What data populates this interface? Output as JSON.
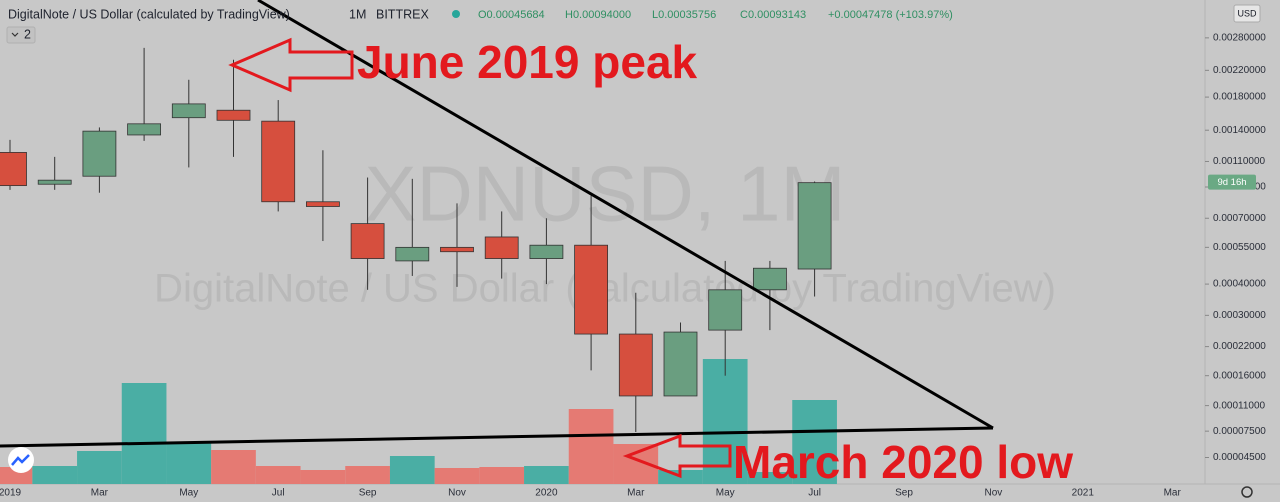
{
  "chart_data": {
    "type": "candlestick",
    "title": "DigitalNote / US Dollar (calculated by TradingView)",
    "interval": "1M",
    "exchange": "BITTREX",
    "legend_values": [
      "O0.00045684",
      "H0.00094000",
      "L0.00035756",
      "C0.00093143",
      "+0.00047478 (+103.97%)"
    ],
    "indicator_count": 2,
    "currency": "USD",
    "countdown": "9d 16h",
    "watermark": [
      "XDNUSD, 1M",
      "DigitalNote / US Dollar (calculated by TradingView)"
    ],
    "annotations": [
      "June 2019 peak",
      "March 2020 low"
    ],
    "log_scale": true,
    "ylim": [
      2e-05,
      0.0037
    ],
    "yticks": [
      {
        "value": 0.0028,
        "label": "0.00280000"
      },
      {
        "value": 0.0022,
        "label": "0.00220000"
      },
      {
        "value": 0.0018,
        "label": "0.00180000"
      },
      {
        "value": 0.0014,
        "label": "0.00140000"
      },
      {
        "value": 0.0011,
        "label": "0.00110000"
      },
      {
        "value": 0.0009,
        "label": "0.00090000"
      },
      {
        "value": 0.0007,
        "label": "0.00070000"
      },
      {
        "value": 0.00055,
        "label": "0.00055000"
      },
      {
        "value": 0.0004,
        "label": "0.00040000"
      },
      {
        "value": 0.0003,
        "label": "0.00030000"
      },
      {
        "value": 0.00022,
        "label": "0.00022000"
      },
      {
        "value": 0.00016,
        "label": "0.00016000"
      },
      {
        "value": 0.00011,
        "label": "0.00011000"
      },
      {
        "value": 7.5e-05,
        "label": "0.00007500"
      },
      {
        "value": 4.5e-05,
        "label": "0.00004500"
      }
    ],
    "categories": [
      "2019",
      null,
      "Mar",
      null,
      "May",
      null,
      "Jul",
      null,
      "Sep",
      null,
      "Nov",
      null,
      "2020",
      null,
      "Mar",
      null,
      "May",
      null,
      "Jul",
      null,
      "Sep",
      null,
      "Nov",
      null,
      "2021",
      null,
      "Mar"
    ],
    "open": [
      0.00118,
      0.00092,
      0.00098,
      0.00135,
      0.00154,
      0.00163,
      0.0015,
      0.0008,
      0.00067,
      0.00049,
      0.00055,
      0.0006,
      0.0005,
      0.00056,
      0.00025,
      0.000125,
      0.00026,
      0.00038,
      0.00045684,
      null,
      null,
      null,
      null,
      null,
      null,
      null,
      null
    ],
    "high": [
      0.0013,
      0.00114,
      0.00143,
      0.0026,
      0.00205,
      0.00238,
      0.00176,
      0.0012,
      0.00097,
      0.00096,
      0.00079,
      0.00074,
      0.0007,
      0.00084,
      0.00037,
      0.00028,
      0.00049,
      0.00049,
      0.00094,
      null,
      null,
      null,
      null,
      null,
      null,
      null,
      null
    ],
    "low": [
      0.00088,
      0.00088,
      0.00086,
      0.00129,
      0.00105,
      0.00114,
      0.00074,
      0.00058,
      0.00038,
      0.00043,
      0.00039,
      0.00042,
      0.0004,
      0.00017,
      7.4e-05,
      0.000125,
      0.00016,
      0.00026,
      0.00035756,
      null,
      null,
      null,
      null,
      null,
      null,
      null,
      null
    ],
    "close": [
      0.00091,
      0.00095,
      0.00139,
      0.00147,
      0.00171,
      0.00151,
      0.0008,
      0.00077,
      0.0005,
      0.00055,
      0.00053,
      0.0005,
      0.00056,
      0.00025,
      0.000125,
      0.000255,
      0.00038,
      0.00046,
      0.00093143,
      null,
      null,
      null,
      null,
      null,
      null,
      null,
      null
    ],
    "volume": [
      17,
      18,
      33,
      101,
      42,
      34,
      18,
      14,
      18,
      28,
      16,
      17,
      18,
      75,
      40,
      14,
      125,
      12,
      84,
      null,
      null,
      null,
      null,
      null,
      null,
      null,
      null
    ],
    "up_color": "#6a9e80",
    "down_color": "#d64f3e",
    "volume_up_color": "#4aaea4",
    "volume_down_color": "#e57a73"
  }
}
